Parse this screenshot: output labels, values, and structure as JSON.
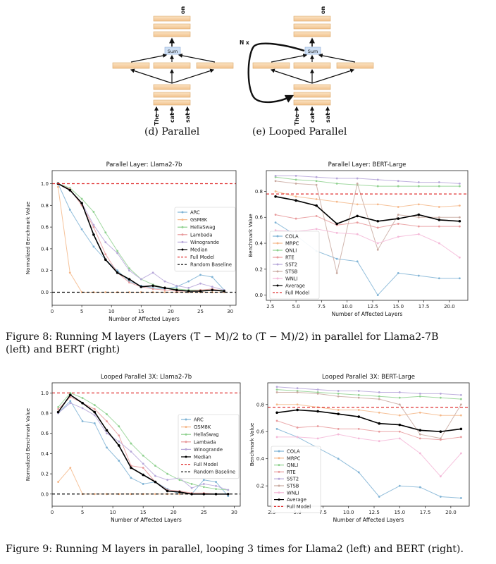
{
  "diagram_labels": {
    "top_token": "on",
    "sum": "Sum",
    "loop": "N x",
    "input_tokens": [
      "The",
      "cat",
      "sat"
    ],
    "caption_d": "(d) Parallel",
    "caption_e": "(e) Looped Parallel"
  },
  "figure8_caption": {
    "line1": "Figure 8: Running M layers (Layers (T − M)/2 to (T − M)/2) in parallel for Llama2-7B",
    "line2": "(left) and BERT (right)"
  },
  "figure9_caption": "Figure 9: Running M layers in parallel, looping 3 times for Llama2 (left) and BERT (right).",
  "colors": {
    "ARC": "#7fb3d5",
    "GSM8K": "#f5b88a",
    "HellaSwag": "#8fd18f",
    "Lambada": "#e8999b",
    "Winogrande": "#b6a6d9",
    "Median": "#000000",
    "Average": "#000000",
    "Full Model": "#e03030",
    "Random Baseline": "#000000",
    "COLA": "#7fb3d5",
    "MRPC": "#f5b88a",
    "QNLI": "#8fd18f",
    "RTE": "#e8999b",
    "SST2": "#b6a6d9",
    "STSB": "#c9a9a0",
    "WNLI": "#f4b8d8"
  },
  "chart_data": [
    {
      "type": "line",
      "title": "Parallel Layer: Llama2-7b",
      "xlabel": "Number of Affected Layers",
      "ylabel": "Normalized Benchmark Value",
      "xlim": [
        0,
        31
      ],
      "ylim": [
        -0.12,
        1.12
      ],
      "xticks": [
        0,
        5,
        10,
        15,
        20,
        25,
        30
      ],
      "yticks": [
        0.0,
        0.2,
        0.4,
        0.6,
        0.8,
        1.0
      ],
      "legend": "center-right",
      "grid": false,
      "series": [
        {
          "name": "ARC",
          "x": [
            1,
            3,
            5,
            7,
            9,
            11,
            13,
            15,
            17,
            19,
            21,
            23,
            25,
            27,
            29
          ],
          "y": [
            1.0,
            0.76,
            0.58,
            0.42,
            0.3,
            0.2,
            0.1,
            0.06,
            0.04,
            0.03,
            0.05,
            0.1,
            0.16,
            0.14,
            0.02
          ]
        },
        {
          "name": "GSM8K",
          "x": [
            1,
            3,
            5,
            7,
            9,
            11,
            13,
            15,
            17,
            19,
            21,
            23,
            25,
            27,
            29
          ],
          "y": [
            0.97,
            0.18,
            0.0,
            0.0,
            0.0,
            0.0,
            0.0,
            0.0,
            0.0,
            0.0,
            0.0,
            0.0,
            0.0,
            0.0,
            0.0
          ]
        },
        {
          "name": "HellaSwag",
          "x": [
            1,
            3,
            5,
            7,
            9,
            11,
            13,
            15,
            17,
            19,
            21,
            23,
            25,
            27,
            29
          ],
          "y": [
            1.0,
            0.96,
            0.86,
            0.74,
            0.55,
            0.38,
            0.22,
            0.12,
            0.07,
            0.04,
            0.03,
            0.02,
            0.02,
            0.02,
            0.02
          ]
        },
        {
          "name": "Lambada",
          "x": [
            1,
            3,
            5,
            7,
            9,
            11,
            13,
            15,
            17,
            19,
            21,
            23,
            25,
            27,
            29
          ],
          "y": [
            1.0,
            0.95,
            0.8,
            0.6,
            0.35,
            0.18,
            0.09,
            0.05,
            0.03,
            0.02,
            0.01,
            0.01,
            0.02,
            0.03,
            0.01
          ]
        },
        {
          "name": "Winogrande",
          "x": [
            1,
            3,
            5,
            7,
            9,
            11,
            13,
            15,
            17,
            19,
            21,
            23,
            25,
            27,
            29
          ],
          "y": [
            1.0,
            0.94,
            0.82,
            0.62,
            0.46,
            0.36,
            0.2,
            0.12,
            0.18,
            0.1,
            0.06,
            0.04,
            0.08,
            0.05,
            0.02
          ]
        },
        {
          "name": "Median",
          "x": [
            1,
            3,
            5,
            7,
            9,
            11,
            13,
            15,
            17,
            19,
            21,
            23,
            25,
            27,
            29
          ],
          "y": [
            1.0,
            0.94,
            0.82,
            0.53,
            0.3,
            0.18,
            0.12,
            0.05,
            0.06,
            0.04,
            0.02,
            0.01,
            0.01,
            0.02,
            0.01
          ]
        },
        {
          "name": "Full Model",
          "hline": 1.0
        },
        {
          "name": "Random Baseline",
          "hline": 0.0
        }
      ]
    },
    {
      "type": "line",
      "title": "Parallel Layer: BERT-Large",
      "xlabel": "Number of Affected Layers",
      "ylabel": "Benchmark Value",
      "xlim": [
        2.1,
        21.8
      ],
      "ylim": [
        -0.04,
        0.96
      ],
      "xticks": [
        2.5,
        5.0,
        7.5,
        10.0,
        12.5,
        15.0,
        17.5,
        20.0
      ],
      "yticks": [
        0.0,
        0.2,
        0.4,
        0.6,
        0.8
      ],
      "legend": "bottom-left",
      "grid": false,
      "series": [
        {
          "name": "COLA",
          "x": [
            3,
            5,
            7,
            9,
            11,
            13,
            15,
            17,
            19,
            21
          ],
          "y": [
            0.56,
            0.46,
            0.34,
            0.28,
            0.26,
            0.0,
            0.17,
            0.15,
            0.13,
            0.13
          ]
        },
        {
          "name": "MRPC",
          "x": [
            3,
            5,
            7,
            9,
            11,
            13,
            15,
            17,
            19,
            21
          ],
          "y": [
            0.8,
            0.76,
            0.74,
            0.72,
            0.7,
            0.7,
            0.68,
            0.7,
            0.68,
            0.69
          ]
        },
        {
          "name": "QNLI",
          "x": [
            3,
            5,
            7,
            9,
            11,
            13,
            15,
            17,
            19,
            21
          ],
          "y": [
            0.91,
            0.89,
            0.88,
            0.86,
            0.85,
            0.84,
            0.84,
            0.84,
            0.84,
            0.84
          ]
        },
        {
          "name": "RTE",
          "x": [
            3,
            5,
            7,
            9,
            11,
            13,
            15,
            17,
            19,
            21
          ],
          "y": [
            0.62,
            0.59,
            0.61,
            0.54,
            0.56,
            0.52,
            0.55,
            0.53,
            0.53,
            0.53
          ]
        },
        {
          "name": "SST2",
          "x": [
            3,
            5,
            7,
            9,
            11,
            13,
            15,
            17,
            19,
            21
          ],
          "y": [
            0.92,
            0.92,
            0.91,
            0.9,
            0.9,
            0.89,
            0.88,
            0.87,
            0.87,
            0.86
          ]
        },
        {
          "name": "STSB",
          "x": [
            3,
            5,
            7,
            9,
            11,
            13,
            15,
            17,
            19,
            21
          ],
          "y": [
            0.88,
            0.86,
            0.85,
            0.17,
            0.86,
            0.35,
            0.62,
            0.6,
            0.6,
            0.6
          ]
        },
        {
          "name": "WNLI",
          "x": [
            3,
            5,
            7,
            9,
            11,
            13,
            15,
            17,
            19,
            21
          ],
          "y": [
            0.5,
            0.49,
            0.51,
            0.48,
            0.47,
            0.4,
            0.45,
            0.47,
            0.4,
            0.29
          ]
        },
        {
          "name": "Average",
          "x": [
            3,
            5,
            7,
            9,
            11,
            13,
            15,
            17,
            19,
            21
          ],
          "y": [
            0.76,
            0.73,
            0.69,
            0.55,
            0.61,
            0.57,
            0.59,
            0.62,
            0.58,
            0.57
          ]
        },
        {
          "name": "Full Model",
          "hline": 0.78
        }
      ]
    },
    {
      "type": "line",
      "title": "Looped Parallel 3X: Llama2-7b",
      "xlabel": "Number of Affected Layers",
      "ylabel": "Normalized Benchmark Value",
      "xlim": [
        0,
        31
      ],
      "ylim": [
        -0.12,
        1.1
      ],
      "xticks": [
        0,
        5,
        10,
        15,
        20,
        25,
        30
      ],
      "yticks": [
        0.0,
        0.2,
        0.4,
        0.6,
        0.8,
        1.0
      ],
      "legend": "center-right",
      "grid": false,
      "series": [
        {
          "name": "ARC",
          "x": [
            1,
            3,
            5,
            7,
            9,
            11,
            13,
            15,
            17,
            19,
            21,
            23,
            25,
            27,
            29
          ],
          "y": [
            0.8,
            0.92,
            0.72,
            0.7,
            0.46,
            0.33,
            0.16,
            0.1,
            0.12,
            0.05,
            0.0,
            0.0,
            0.14,
            0.12,
            -0.02
          ]
        },
        {
          "name": "GSM8K",
          "x": [
            1,
            3,
            5,
            7,
            9,
            11,
            13,
            15,
            17,
            19,
            21,
            23,
            25,
            27,
            29
          ],
          "y": [
            0.12,
            0.26,
            0.0,
            0.0,
            0.0,
            0.0,
            0.0,
            0.0,
            0.0,
            0.0,
            0.0,
            0.0,
            0.0,
            0.0,
            0.0
          ]
        },
        {
          "name": "HellaSwag",
          "x": [
            1,
            3,
            5,
            7,
            9,
            11,
            13,
            15,
            17,
            19,
            21,
            23,
            25,
            27,
            29
          ],
          "y": [
            0.86,
            1.0,
            0.95,
            0.88,
            0.79,
            0.67,
            0.5,
            0.38,
            0.28,
            0.2,
            0.14,
            0.1,
            0.07,
            0.05,
            0.04
          ]
        },
        {
          "name": "Lambada",
          "x": [
            1,
            3,
            5,
            7,
            9,
            11,
            13,
            15,
            17,
            19,
            21,
            23,
            25,
            27,
            29
          ],
          "y": [
            0.84,
            0.96,
            0.9,
            0.84,
            0.72,
            0.58,
            0.28,
            0.26,
            0.12,
            0.04,
            0.03,
            0.01,
            0.01,
            0.0,
            0.0
          ]
        },
        {
          "name": "Winogrande",
          "x": [
            1,
            3,
            5,
            7,
            9,
            11,
            13,
            15,
            17,
            19,
            21,
            23,
            25,
            27,
            29
          ],
          "y": [
            0.8,
            0.9,
            0.85,
            0.78,
            0.6,
            0.52,
            0.42,
            0.3,
            0.18,
            0.14,
            0.16,
            0.06,
            0.1,
            0.08,
            0.04
          ]
        },
        {
          "name": "Median",
          "x": [
            1,
            3,
            5,
            7,
            9,
            11,
            13,
            15,
            17,
            19,
            21,
            23,
            25,
            27,
            29
          ],
          "y": [
            0.81,
            0.98,
            0.9,
            0.81,
            0.63,
            0.48,
            0.26,
            0.19,
            0.12,
            0.03,
            0.02,
            0.0,
            0.0,
            0.0,
            0.0
          ]
        },
        {
          "name": "Full Model",
          "hline": 1.0
        },
        {
          "name": "Random Baseline",
          "hline": 0.0
        }
      ]
    },
    {
      "type": "line",
      "title": "Looped Parallel 3X: BERT-Large",
      "xlabel": "Number of Affected Layers",
      "ylabel": "Benchmark Value",
      "xlim": [
        2.1,
        21.8
      ],
      "ylim": [
        0.05,
        0.96
      ],
      "xticks": [
        2.5,
        5.0,
        7.5,
        10.0,
        12.5,
        15.0,
        17.5,
        20.0
      ],
      "yticks": [
        0.2,
        0.4,
        0.6,
        0.8
      ],
      "legend": "bottom-left",
      "grid": false,
      "series": [
        {
          "name": "COLA",
          "x": [
            3,
            5,
            7,
            9,
            11,
            13,
            15,
            17,
            19,
            21
          ],
          "y": [
            0.62,
            0.56,
            0.48,
            0.4,
            0.3,
            0.12,
            0.2,
            0.19,
            0.12,
            0.11
          ]
        },
        {
          "name": "MRPC",
          "x": [
            3,
            5,
            7,
            9,
            11,
            13,
            15,
            17,
            19,
            21
          ],
          "y": [
            0.8,
            0.8,
            0.78,
            0.76,
            0.76,
            0.74,
            0.72,
            0.74,
            0.72,
            0.72
          ]
        },
        {
          "name": "QNLI",
          "x": [
            3,
            5,
            7,
            9,
            11,
            13,
            15,
            17,
            19,
            21
          ],
          "y": [
            0.91,
            0.9,
            0.89,
            0.88,
            0.87,
            0.86,
            0.85,
            0.86,
            0.85,
            0.84
          ]
        },
        {
          "name": "RTE",
          "x": [
            3,
            5,
            7,
            9,
            11,
            13,
            15,
            17,
            19,
            21
          ],
          "y": [
            0.68,
            0.63,
            0.64,
            0.62,
            0.62,
            0.6,
            0.6,
            0.55,
            0.54,
            0.56
          ]
        },
        {
          "name": "SST2",
          "x": [
            3,
            5,
            7,
            9,
            11,
            13,
            15,
            17,
            19,
            21
          ],
          "y": [
            0.93,
            0.92,
            0.91,
            0.9,
            0.9,
            0.89,
            0.89,
            0.88,
            0.88,
            0.87
          ]
        },
        {
          "name": "STSB",
          "x": [
            3,
            5,
            7,
            9,
            11,
            13,
            15,
            17,
            19,
            21
          ],
          "y": [
            0.89,
            0.89,
            0.88,
            0.86,
            0.85,
            0.84,
            0.8,
            0.58,
            0.55,
            0.8
          ]
        },
        {
          "name": "WNLI",
          "x": [
            3,
            5,
            7,
            9,
            11,
            13,
            15,
            17,
            19,
            21
          ],
          "y": [
            0.56,
            0.56,
            0.55,
            0.58,
            0.55,
            0.53,
            0.55,
            0.44,
            0.27,
            0.44
          ]
        },
        {
          "name": "Average",
          "x": [
            3,
            5,
            7,
            9,
            11,
            13,
            15,
            17,
            19,
            21
          ],
          "y": [
            0.74,
            0.76,
            0.75,
            0.73,
            0.71,
            0.66,
            0.65,
            0.61,
            0.6,
            0.62
          ]
        },
        {
          "name": "Full Model",
          "hline": 0.78
        }
      ]
    }
  ]
}
